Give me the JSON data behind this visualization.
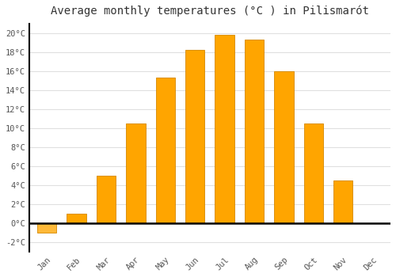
{
  "title": "Average monthly temperatures (°C ) in Pilismarót",
  "months": [
    "Jan",
    "Feb",
    "Mar",
    "Apr",
    "May",
    "Jun",
    "Jul",
    "Aug",
    "Sep",
    "Oct",
    "Nov",
    "Dec"
  ],
  "values": [
    -1.0,
    1.0,
    5.0,
    10.5,
    15.3,
    18.2,
    19.8,
    19.3,
    16.0,
    10.5,
    4.5,
    0.0
  ],
  "bar_color_positive": "#FFA500",
  "bar_color_negative": "#FFB938",
  "bar_edge_color": "#D48800",
  "ylim": [
    -3,
    21
  ],
  "yticks": [
    -2,
    0,
    2,
    4,
    6,
    8,
    10,
    12,
    14,
    16,
    18,
    20
  ],
  "ytick_labels": [
    "-2°C",
    "0°C",
    "2°C",
    "4°C",
    "6°C",
    "8°C",
    "10°C",
    "12°C",
    "14°C",
    "16°C",
    "18°C",
    "20°C"
  ],
  "background_color": "#ffffff",
  "grid_color": "#e0e0e0",
  "title_fontsize": 10,
  "tick_fontsize": 7.5,
  "bar_width": 0.65
}
